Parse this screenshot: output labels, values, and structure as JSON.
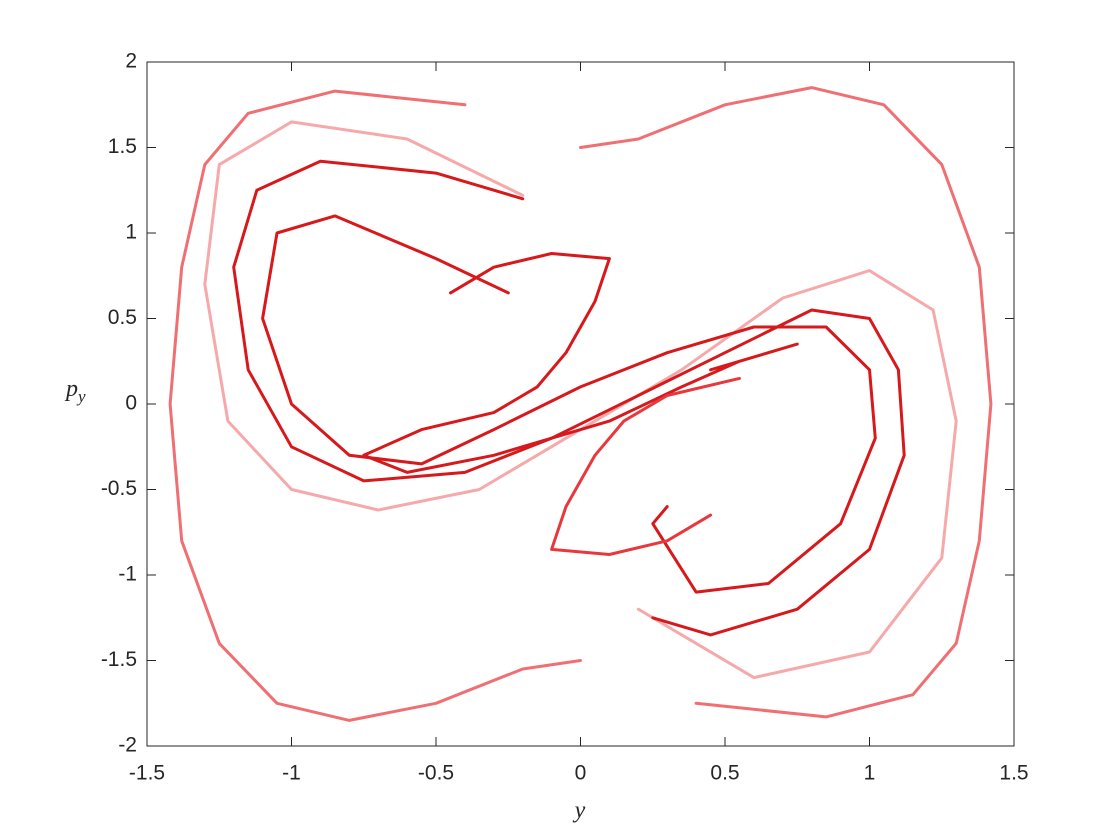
{
  "chart_data": {
    "type": "line",
    "xlabel": "y",
    "ylabel": {
      "base": "p",
      "subscript": "y"
    },
    "xlim": [
      -1.5,
      1.5
    ],
    "xticks": [
      -1.5,
      -1,
      -0.5,
      0,
      0.5,
      1,
      1.5
    ],
    "ylim": [
      -2,
      2
    ],
    "yticks": [
      -2,
      -1.5,
      -1,
      -0.5,
      0,
      0.5,
      1,
      1.5,
      2
    ],
    "grid": false,
    "series": [
      {
        "color": "#ef6f72",
        "x": [
          -0.4,
          -0.85,
          -1.15,
          -1.3,
          -1.38,
          -1.42,
          -1.38,
          -1.25,
          -1.05,
          -0.8,
          -0.5,
          -0.2,
          0
        ],
        "values": [
          1.75,
          1.83,
          1.7,
          1.4,
          0.8,
          0,
          -0.8,
          -1.4,
          -1.75,
          -1.85,
          -1.75,
          -1.55,
          -1.5
        ]
      },
      {
        "color": "#ef6f72",
        "x": [
          0.4,
          0.85,
          1.15,
          1.3,
          1.38,
          1.42,
          1.38,
          1.25,
          1.05,
          0.8,
          0.5,
          0.2,
          0
        ],
        "values": [
          -1.75,
          -1.83,
          -1.7,
          -1.4,
          -0.8,
          0,
          0.8,
          1.4,
          1.75,
          1.85,
          1.75,
          1.55,
          1.5
        ]
      },
      {
        "color": "#f5a9ab",
        "x": [
          -0.2,
          -0.6,
          -1.0,
          -1.25,
          -1.3,
          -1.22,
          -1.0,
          -0.7,
          -0.35,
          0,
          0.35,
          0.7,
          1.0,
          1.22,
          1.3,
          1.25,
          1.0,
          0.6,
          0.2
        ],
        "values": [
          1.22,
          1.55,
          1.65,
          1.4,
          0.7,
          -0.1,
          -0.5,
          -0.62,
          -0.5,
          -0.15,
          0.2,
          0.62,
          0.78,
          0.55,
          -0.1,
          -0.9,
          -1.45,
          -1.6,
          -1.2
        ]
      },
      {
        "color": "#d7191c",
        "x": [
          -0.2,
          -0.5,
          -0.9,
          -1.12,
          -1.2,
          -1.15,
          -1.0,
          -0.75,
          -0.4,
          -0.1,
          0.2,
          0.5,
          0.8,
          1.0,
          1.1,
          1.12,
          1.0,
          0.75,
          0.45,
          0.25
        ],
        "values": [
          1.2,
          1.35,
          1.42,
          1.25,
          0.8,
          0.2,
          -0.25,
          -0.45,
          -0.4,
          -0.2,
          0.05,
          0.3,
          0.55,
          0.5,
          0.2,
          -0.3,
          -0.85,
          -1.2,
          -1.35,
          -1.25
        ]
      },
      {
        "color": "#d7191c",
        "x": [
          -0.25,
          -0.5,
          -0.85,
          -1.05,
          -1.1,
          -1.0,
          -0.8,
          -0.55,
          -0.3,
          0,
          0.3,
          0.6,
          0.85,
          1.0,
          1.02,
          0.9,
          0.65,
          0.4,
          0.25,
          0.3
        ],
        "values": [
          0.65,
          0.85,
          1.1,
          1.0,
          0.5,
          0,
          -0.3,
          -0.35,
          -0.15,
          0.1,
          0.3,
          0.45,
          0.45,
          0.2,
          -0.2,
          -0.7,
          -1.05,
          -1.1,
          -0.7,
          -0.6
        ]
      },
      {
        "color": "#d7191c",
        "x": [
          -0.45,
          -0.3,
          -0.1,
          0.1,
          0.05,
          -0.05,
          -0.15,
          -0.3,
          -0.55,
          -0.75,
          -0.6,
          -0.3,
          0.1,
          0.35,
          0.55,
          0.75,
          0.65,
          0.45
        ],
        "values": [
          0.65,
          0.8,
          0.88,
          0.85,
          0.6,
          0.3,
          0.1,
          -0.05,
          -0.15,
          -0.3,
          -0.4,
          -0.3,
          -0.1,
          0.1,
          0.25,
          0.35,
          0.3,
          0.2
        ]
      },
      {
        "color": "#e8383d",
        "x": [
          0.45,
          0.3,
          0.1,
          -0.1,
          -0.05,
          0.05,
          0.15,
          0.3,
          0.55
        ],
        "values": [
          -0.65,
          -0.8,
          -0.88,
          -0.85,
          -0.6,
          -0.3,
          -0.1,
          0.05,
          0.15
        ]
      }
    ]
  }
}
